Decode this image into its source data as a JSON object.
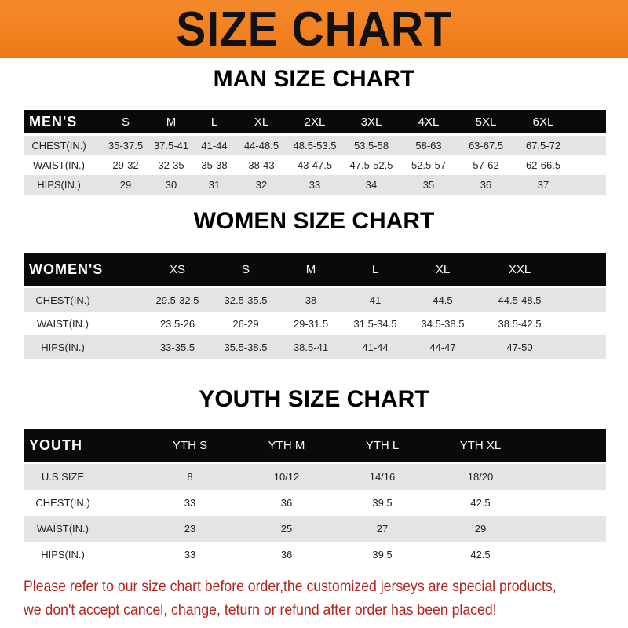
{
  "banner": {
    "title": "SIZE CHART",
    "color": "#f0801f"
  },
  "tables": [
    {
      "title": "MAN SIZE CHART",
      "header": [
        "MEN'S",
        "S",
        "M",
        "L",
        "XL",
        "2XL",
        "3XL",
        "4XL",
        "5XL",
        "6XL"
      ],
      "rows": [
        [
          "CHEST(IN.)",
          "35-37.5",
          "37.5-41",
          "41-44",
          "44-48.5",
          "48.5-53.5",
          "53.5-58",
          "58-63",
          "63-67.5",
          "67.5-72"
        ],
        [
          "WAIST(IN.)",
          "29-32",
          "32-35",
          "35-38",
          "38-43",
          "43-47.5",
          "47.5-52.5",
          "52.5-57",
          "57-62",
          "62-66.5"
        ],
        [
          "HIPS(IN.)",
          "29",
          "30",
          "31",
          "32",
          "33",
          "34",
          "35",
          "36",
          "37"
        ]
      ]
    },
    {
      "title": "WOMEN SIZE CHART",
      "header": [
        "WOMEN'S",
        "XS",
        "S",
        "M",
        "L",
        "XL",
        "XXL"
      ],
      "rows": [
        [
          "CHEST(IN.)",
          "29.5-32.5",
          "32.5-35.5",
          "38",
          "41",
          "44.5",
          "44.5-48.5"
        ],
        [
          "WAIST(IN.)",
          "23.5-26",
          "26-29",
          "29-31.5",
          "31.5-34.5",
          "34.5-38.5",
          "38.5-42.5"
        ],
        [
          "HIPS(IN.)",
          "33-35.5",
          "35.5-38.5",
          "38.5-41",
          "41-44",
          "44-47",
          "47-50"
        ]
      ]
    },
    {
      "title": "YOUTH SIZE CHART",
      "header": [
        "YOUTH",
        "YTH S",
        "YTH M",
        "YTH L",
        "YTH XL"
      ],
      "rows": [
        [
          "U.S.SIZE",
          "8",
          "10/12",
          "14/16",
          "18/20"
        ],
        [
          "CHEST(IN.)",
          "33",
          "36",
          "39.5",
          "42.5"
        ],
        [
          "WAIST(IN.)",
          "23",
          "25",
          "27",
          "29"
        ],
        [
          "HIPS(IN.)",
          "33",
          "36",
          "39.5",
          "42.5"
        ]
      ]
    }
  ],
  "footer": {
    "line1": "Please refer to our size chart before order,the customized jerseys are special products,",
    "line2": "we don't accept cancel, change, teturn or refund after order has been placed!",
    "color": "#b5241c"
  }
}
